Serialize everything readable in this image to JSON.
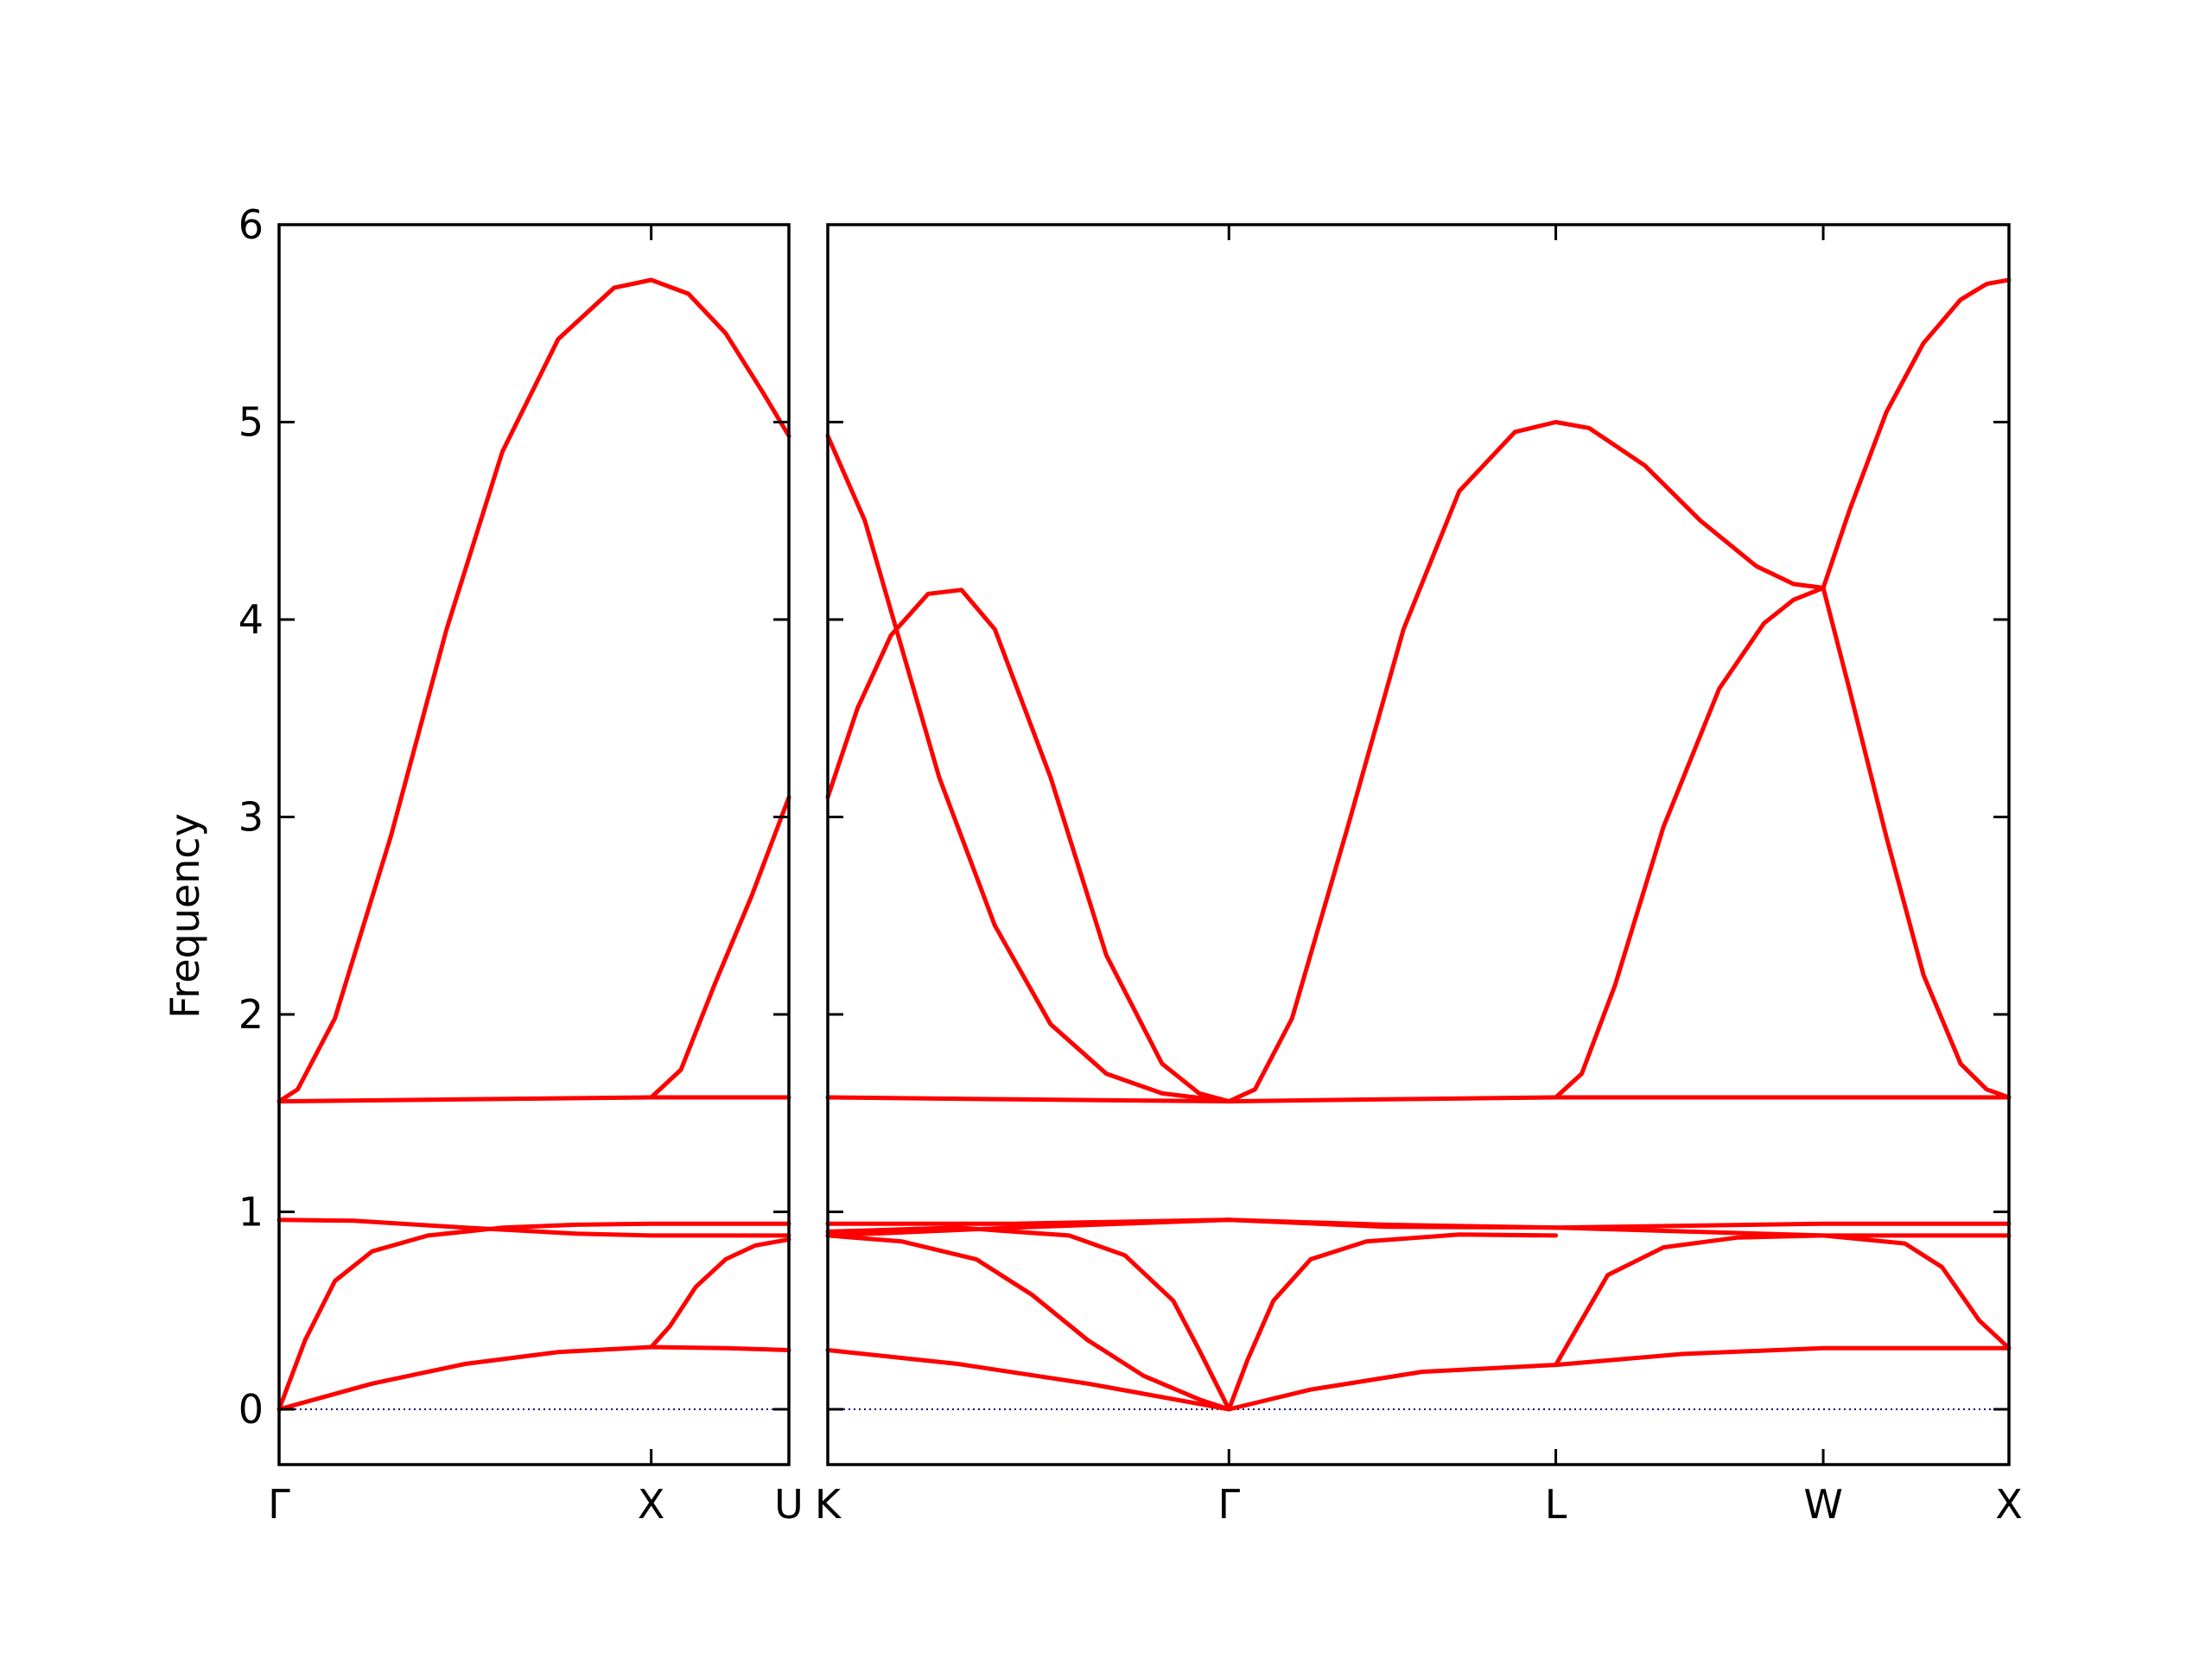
{
  "chart_data": {
    "type": "line",
    "ylabel": "Frequency",
    "ylim": [
      -0.28,
      6.0
    ],
    "yticks": [
      0,
      1,
      2,
      3,
      4,
      5,
      6
    ],
    "line_color": "#ff0000",
    "zero_line_color": "#00008b",
    "grid": false,
    "panels": [
      {
        "x_range": [
          0,
          1.37
        ],
        "ticks": [
          {
            "x": 0,
            "label": "Γ"
          },
          {
            "x": 1.0,
            "label": "X"
          },
          {
            "x": 1.37,
            "label": "U"
          }
        ],
        "series": [
          {
            "points": [
              [
                0,
                1.56
              ],
              [
                0.05,
                1.62
              ],
              [
                0.15,
                1.98
              ],
              [
                0.3,
                2.9
              ],
              [
                0.45,
                3.95
              ],
              [
                0.6,
                4.85
              ],
              [
                0.75,
                5.42
              ],
              [
                0.9,
                5.68
              ],
              [
                1.0,
                5.72
              ],
              [
                1.1,
                5.65
              ],
              [
                1.2,
                5.45
              ],
              [
                1.3,
                5.15
              ],
              [
                1.37,
                4.93
              ]
            ]
          },
          {
            "points": [
              [
                0,
                1.56
              ],
              [
                0.5,
                1.57
              ],
              [
                1.0,
                1.58
              ],
              [
                1.37,
                1.58
              ]
            ]
          },
          {
            "points": [
              [
                1.0,
                1.58
              ],
              [
                1.08,
                1.72
              ],
              [
                1.17,
                2.15
              ],
              [
                1.27,
                2.6
              ],
              [
                1.37,
                3.1
              ]
            ]
          },
          {
            "points": [
              [
                0,
                0.96
              ],
              [
                0.2,
                0.955
              ],
              [
                0.5,
                0.92
              ],
              [
                0.8,
                0.89
              ],
              [
                1.0,
                0.88
              ],
              [
                1.37,
                0.88
              ]
            ]
          },
          {
            "points": [
              [
                0,
                0
              ],
              [
                0.07,
                0.35
              ],
              [
                0.15,
                0.65
              ],
              [
                0.25,
                0.8
              ],
              [
                0.4,
                0.88
              ],
              [
                0.6,
                0.92
              ],
              [
                0.8,
                0.935
              ],
              [
                1.0,
                0.94
              ],
              [
                1.37,
                0.94
              ]
            ]
          },
          {
            "points": [
              [
                0,
                0
              ],
              [
                0.25,
                0.13
              ],
              [
                0.5,
                0.23
              ],
              [
                0.75,
                0.29
              ],
              [
                1.0,
                0.315
              ],
              [
                1.2,
                0.31
              ],
              [
                1.37,
                0.3
              ]
            ]
          },
          {
            "points": [
              [
                1.0,
                0.315
              ],
              [
                1.05,
                0.42
              ],
              [
                1.12,
                0.62
              ],
              [
                1.2,
                0.76
              ],
              [
                1.28,
                0.83
              ],
              [
                1.37,
                0.86
              ]
            ]
          }
        ]
      },
      {
        "x_range": [
          0,
          3.18
        ],
        "ticks": [
          {
            "x": 0,
            "label": "K"
          },
          {
            "x": 1.08,
            "label": "Γ"
          },
          {
            "x": 1.96,
            "label": "L"
          },
          {
            "x": 2.68,
            "label": "W"
          },
          {
            "x": 3.18,
            "label": "X"
          }
        ],
        "series": [
          {
            "points": [
              [
                0,
                4.93
              ],
              [
                0.1,
                4.5
              ],
              [
                0.2,
                3.85
              ],
              [
                0.3,
                3.2
              ],
              [
                0.45,
                2.45
              ],
              [
                0.6,
                1.95
              ],
              [
                0.75,
                1.7
              ],
              [
                0.9,
                1.6
              ],
              [
                1.08,
                1.56
              ]
            ]
          },
          {
            "points": [
              [
                0,
                3.1
              ],
              [
                0.08,
                3.55
              ],
              [
                0.17,
                3.92
              ],
              [
                0.27,
                4.13
              ],
              [
                0.36,
                4.15
              ],
              [
                0.45,
                3.95
              ],
              [
                0.6,
                3.2
              ],
              [
                0.75,
                2.3
              ],
              [
                0.9,
                1.75
              ],
              [
                1.0,
                1.6
              ],
              [
                1.08,
                1.56
              ]
            ]
          },
          {
            "points": [
              [
                1.08,
                1.56
              ],
              [
                1.15,
                1.62
              ],
              [
                1.25,
                1.98
              ],
              [
                1.4,
                2.95
              ],
              [
                1.55,
                3.95
              ],
              [
                1.7,
                4.65
              ],
              [
                1.85,
                4.95
              ],
              [
                1.96,
                5.0
              ],
              [
                2.05,
                4.97
              ],
              [
                2.2,
                4.78
              ],
              [
                2.35,
                4.5
              ],
              [
                2.5,
                4.27
              ],
              [
                2.6,
                4.18
              ],
              [
                2.68,
                4.16
              ]
            ]
          },
          {
            "points": [
              [
                1.96,
                1.58
              ],
              [
                2.03,
                1.7
              ],
              [
                2.12,
                2.15
              ],
              [
                2.25,
                2.95
              ],
              [
                2.4,
                3.65
              ],
              [
                2.52,
                3.98
              ],
              [
                2.6,
                4.1
              ],
              [
                2.68,
                4.16
              ]
            ]
          },
          {
            "points": [
              [
                2.68,
                4.16
              ],
              [
                2.75,
                4.55
              ],
              [
                2.85,
                5.05
              ],
              [
                2.95,
                5.4
              ],
              [
                3.05,
                5.62
              ],
              [
                3.12,
                5.7
              ],
              [
                3.18,
                5.72
              ]
            ]
          },
          {
            "points": [
              [
                2.68,
                4.16
              ],
              [
                2.75,
                3.65
              ],
              [
                2.85,
                2.9
              ],
              [
                2.95,
                2.2
              ],
              [
                3.05,
                1.75
              ],
              [
                3.12,
                1.62
              ],
              [
                3.18,
                1.58
              ]
            ]
          },
          {
            "points": [
              [
                0,
                1.58
              ],
              [
                0.5,
                1.57
              ],
              [
                1.08,
                1.56
              ],
              [
                1.5,
                1.57
              ],
              [
                1.96,
                1.58
              ],
              [
                2.68,
                1.58
              ],
              [
                3.18,
                1.58
              ]
            ]
          },
          {
            "points": [
              [
                0,
                0.94
              ],
              [
                0.5,
                0.94
              ],
              [
                1.08,
                0.96
              ],
              [
                1.5,
                0.935
              ],
              [
                1.96,
                0.92
              ],
              [
                2.68,
                0.94
              ],
              [
                3.18,
                0.94
              ]
            ]
          },
          {
            "points": [
              [
                0,
                0.88
              ],
              [
                0.5,
                0.92
              ],
              [
                1.08,
                0.96
              ],
              [
                1.5,
                0.925
              ],
              [
                1.96,
                0.92
              ],
              [
                2.68,
                0.88
              ],
              [
                3.18,
                0.88
              ]
            ]
          },
          {
            "points": [
              [
                0,
                0.9
              ],
              [
                0.35,
                0.92
              ],
              [
                0.65,
                0.88
              ],
              [
                0.8,
                0.78
              ],
              [
                0.93,
                0.55
              ],
              [
                1.0,
                0.3
              ],
              [
                1.08,
                0
              ]
            ]
          },
          {
            "points": [
              [
                0,
                0.88
              ],
              [
                0.2,
                0.85
              ],
              [
                0.4,
                0.76
              ],
              [
                0.55,
                0.58
              ],
              [
                0.7,
                0.35
              ],
              [
                0.85,
                0.17
              ],
              [
                1.0,
                0.05
              ],
              [
                1.08,
                0
              ]
            ]
          },
          {
            "points": [
              [
                1.08,
                0
              ],
              [
                1.13,
                0.25
              ],
              [
                1.2,
                0.55
              ],
              [
                1.3,
                0.76
              ],
              [
                1.45,
                0.85
              ],
              [
                1.7,
                0.885
              ],
              [
                1.96,
                0.88
              ]
            ]
          },
          {
            "points": [
              [
                0,
                0.3
              ],
              [
                0.35,
                0.23
              ],
              [
                0.7,
                0.13
              ],
              [
                1.08,
                0
              ]
            ]
          },
          {
            "points": [
              [
                1.08,
                0
              ],
              [
                1.3,
                0.1
              ],
              [
                1.6,
                0.19
              ],
              [
                1.96,
                0.225
              ],
              [
                2.3,
                0.28
              ],
              [
                2.68,
                0.31
              ],
              [
                3.18,
                0.31
              ]
            ]
          },
          {
            "points": [
              [
                1.96,
                0.225
              ],
              [
                2.02,
                0.42
              ],
              [
                2.1,
                0.68
              ],
              [
                2.25,
                0.82
              ],
              [
                2.45,
                0.87
              ],
              [
                2.68,
                0.88
              ],
              [
                2.9,
                0.84
              ],
              [
                3.0,
                0.72
              ],
              [
                3.1,
                0.45
              ],
              [
                3.18,
                0.31
              ]
            ]
          }
        ]
      }
    ]
  }
}
